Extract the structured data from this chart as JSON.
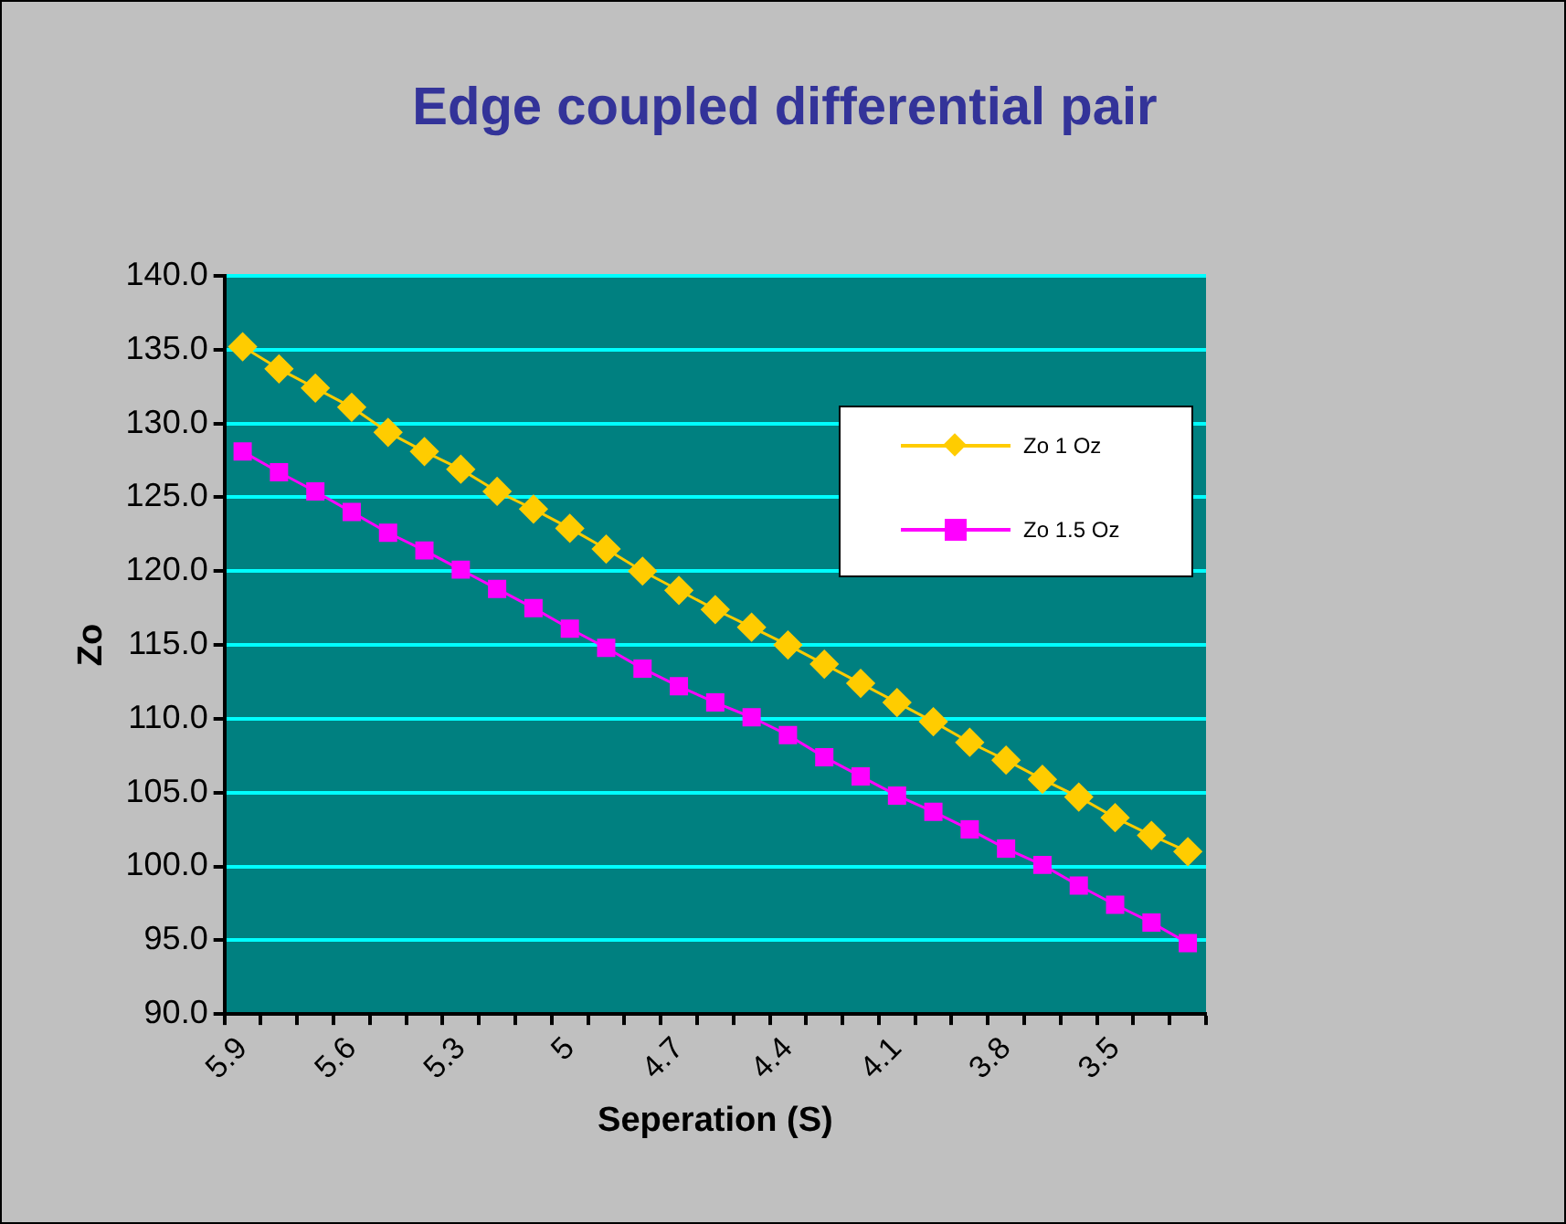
{
  "chart_data": {
    "type": "line",
    "title": "Edge coupled differential pair",
    "xlabel": "Seperation (S)",
    "ylabel": "Zo",
    "categories": [
      "5.9",
      null,
      null,
      "5.6",
      null,
      null,
      "5.3",
      null,
      null,
      "5",
      null,
      null,
      "4.7",
      null,
      null,
      "4.4",
      null,
      null,
      "4.1",
      null,
      null,
      "3.8",
      null,
      null,
      "3.5",
      null,
      null
    ],
    "series": [
      {
        "name": "Zo 1 Oz",
        "color": "#ffcc00",
        "marker": "diamond",
        "values": [
          135.2,
          133.7,
          132.4,
          131.1,
          129.4,
          128.1,
          126.9,
          125.4,
          124.2,
          122.9,
          121.5,
          120.0,
          118.7,
          117.4,
          116.2,
          115.0,
          113.7,
          112.4,
          111.1,
          109.8,
          108.4,
          107.2,
          105.9,
          104.7,
          103.3,
          102.1,
          101.0
        ]
      },
      {
        "name": "Zo 1.5 Oz",
        "color": "#ff00ff",
        "marker": "square",
        "values": [
          128.1,
          126.7,
          125.4,
          124.0,
          122.6,
          121.4,
          120.1,
          118.8,
          117.5,
          116.1,
          114.8,
          113.4,
          112.2,
          111.1,
          110.1,
          108.9,
          107.4,
          106.1,
          104.8,
          103.7,
          102.5,
          101.2,
          100.1,
          98.7,
          97.4,
          96.2,
          94.8
        ]
      }
    ],
    "ylim": [
      90,
      140
    ],
    "yticks": [
      {
        "value": 90,
        "label": "90.0"
      },
      {
        "value": 95,
        "label": "95.0"
      },
      {
        "value": 100,
        "label": "100.0"
      },
      {
        "value": 105,
        "label": "105.0"
      },
      {
        "value": 110,
        "label": "110.0"
      },
      {
        "value": 115,
        "label": "115.0"
      },
      {
        "value": 120,
        "label": "120.0"
      },
      {
        "value": 125,
        "label": "125.0"
      },
      {
        "value": 130,
        "label": "130.0"
      },
      {
        "value": 135,
        "label": "135.0"
      },
      {
        "value": 140,
        "label": "140.0"
      }
    ],
    "grid": "y",
    "legend": "right",
    "line_style": "solid"
  }
}
